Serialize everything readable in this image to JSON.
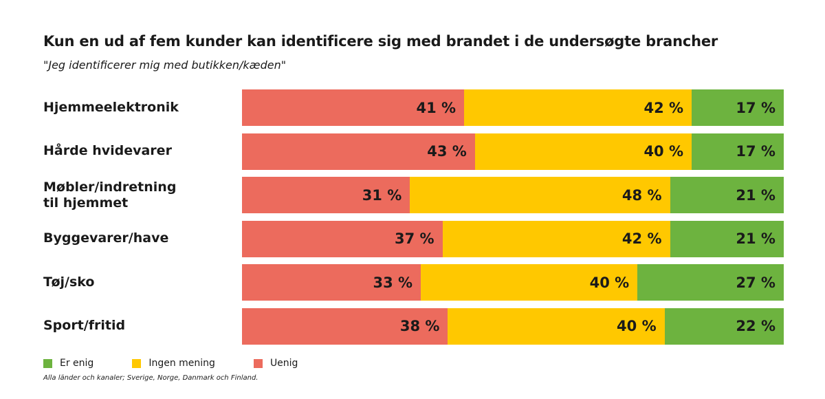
{
  "chart_data": {
    "type": "bar",
    "orientation": "horizontal",
    "stacked": true,
    "title": "Kun en ud af fem kunder kan identificere sig med brandet i de undersøgte brancher",
    "subtitle": "\"Jeg identificerer mig med butikken/kæden\"",
    "categories": [
      "Hjemmeelektronik",
      "Hårde hvidevarer",
      "Møbler/indretning til hjemmet",
      "Byggevarer/have",
      "Tøj/sko",
      "Sport/fritid"
    ],
    "series": [
      {
        "name": "Uenig",
        "color": "#ec6b5d",
        "values": [
          41,
          43,
          31,
          37,
          33,
          38
        ]
      },
      {
        "name": "Ingen mening",
        "color": "#ffc800",
        "values": [
          42,
          40,
          48,
          42,
          40,
          40
        ]
      },
      {
        "name": "Er enig",
        "color": "#6db33f",
        "values": [
          17,
          17,
          21,
          21,
          27,
          22
        ]
      }
    ],
    "value_suffix": " %",
    "xlim": [
      0,
      100
    ],
    "grid": false,
    "legend": {
      "position": "bottom-left",
      "order": [
        "Er enig",
        "Ingen mening",
        "Uenig"
      ]
    },
    "footnote": "Alla länder och kanaler; Sverige, Norge, Danmark och Finland."
  }
}
